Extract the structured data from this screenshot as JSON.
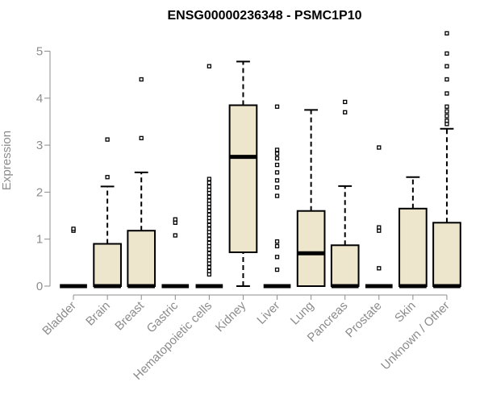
{
  "chart_data": {
    "type": "box",
    "title": "ENSG00000236348 - PSMC1P10",
    "xlabel": "",
    "ylabel": "Expression",
    "ylim": [
      0,
      5.45
    ],
    "yticks": [
      0,
      1,
      2,
      3,
      4,
      5
    ],
    "grid": false,
    "colors": {
      "box_fill": "#ede6cd",
      "stroke": "#000000",
      "axis": "#8c8c8c"
    },
    "categories": [
      "Bladder",
      "Brain",
      "Breast",
      "Gastric",
      "Hematopoietic cells",
      "Kidney",
      "Liver",
      "Lung",
      "Pancreas",
      "Prostate",
      "Skin",
      "Unknown / Other"
    ],
    "boxes": [
      {
        "category": "Bladder",
        "min": 0,
        "q1": 0,
        "median": 0,
        "q3": 0,
        "max": 0,
        "outliers": [
          1.18,
          1.22
        ]
      },
      {
        "category": "Brain",
        "min": 0,
        "q1": 0,
        "median": 0,
        "q3": 0.9,
        "max": 2.12,
        "outliers": [
          2.32,
          3.12
        ]
      },
      {
        "category": "Breast",
        "min": 0,
        "q1": 0,
        "median": 0,
        "q3": 1.18,
        "max": 2.42,
        "outliers": [
          3.15,
          4.4
        ]
      },
      {
        "category": "Gastric",
        "min": 0,
        "q1": 0,
        "median": 0,
        "q3": 0,
        "max": 0,
        "outliers": [
          1.08,
          1.35,
          1.42
        ]
      },
      {
        "category": "Hematopoietic cells",
        "min": 0,
        "q1": 0,
        "median": 0,
        "q3": 0,
        "max": 0,
        "outliers": [
          0.25,
          0.32,
          0.4,
          0.48,
          0.55,
          0.62,
          0.7,
          0.78,
          0.85,
          0.92,
          1.0,
          1.08,
          1.15,
          1.22,
          1.3,
          1.38,
          1.45,
          1.52,
          1.6,
          1.68,
          1.75,
          1.82,
          1.9,
          1.98,
          2.05,
          2.12,
          2.2,
          2.28,
          4.68
        ]
      },
      {
        "category": "Kidney",
        "min": 0,
        "q1": 0.72,
        "median": 2.75,
        "q3": 3.85,
        "max": 4.78,
        "outliers": []
      },
      {
        "category": "Liver",
        "min": 0,
        "q1": 0,
        "median": 0,
        "q3": 0,
        "max": 0,
        "outliers": [
          0.35,
          0.62,
          0.85,
          0.95,
          1.92,
          2.1,
          2.25,
          2.42,
          2.58,
          2.72,
          2.82,
          2.9,
          3.82
        ]
      },
      {
        "category": "Lung",
        "min": 0,
        "q1": 0,
        "median": 0.7,
        "q3": 1.6,
        "max": 3.75,
        "outliers": []
      },
      {
        "category": "Pancreas",
        "min": 0,
        "q1": 0,
        "median": 0,
        "q3": 0.87,
        "max": 2.13,
        "outliers": [
          3.7,
          3.92
        ]
      },
      {
        "category": "Prostate",
        "min": 0,
        "q1": 0,
        "median": 0,
        "q3": 0,
        "max": 0,
        "outliers": [
          0.38,
          1.18,
          1.25,
          2.95
        ]
      },
      {
        "category": "Skin",
        "min": 0,
        "q1": 0,
        "median": 0,
        "q3": 1.65,
        "max": 2.32,
        "outliers": []
      },
      {
        "category": "Unknown / Other",
        "min": 0,
        "q1": 0,
        "median": 0,
        "q3": 1.35,
        "max": 3.35,
        "outliers": [
          3.45,
          3.52,
          3.62,
          3.72,
          3.82,
          4.1,
          4.4,
          4.68,
          4.95,
          5.38
        ]
      }
    ]
  }
}
